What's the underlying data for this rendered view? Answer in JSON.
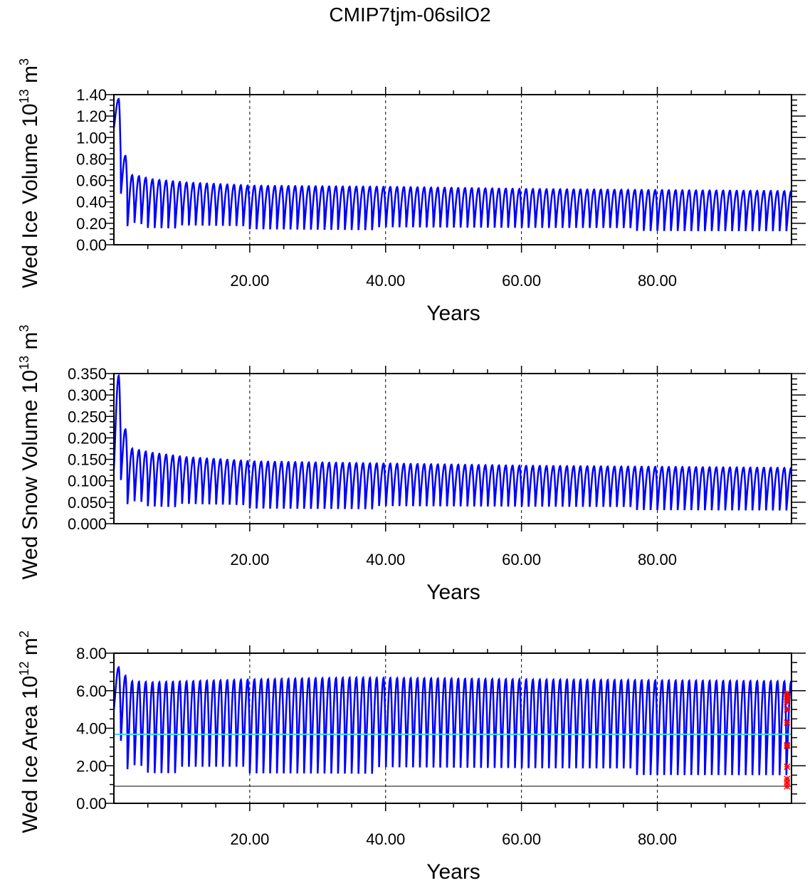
{
  "title": "CMIP7tjm-06silO2",
  "chart_data": [
    {
      "type": "line",
      "ylabel": {
        "main": "Wed Ice Volume 10",
        "exp": "13",
        "unit": " m",
        "unit_exp": "3"
      },
      "xlabel": "Years",
      "xlim": [
        0,
        99.75
      ],
      "ylim": [
        0,
        1.4
      ],
      "xticks": [
        "20.00",
        "40.00",
        "60.00",
        "80.00"
      ],
      "yticks": [
        "0.00",
        "0.20",
        "0.40",
        "0.60",
        "0.80",
        "1.00",
        "1.20",
        "1.40"
      ],
      "ytick_step": 0.2,
      "yminor_step": 0.05,
      "start_value": 1.02,
      "series_color": "#0000ff",
      "envelope": [
        [
          0,
          1.36,
          0.35
        ],
        [
          1,
          0.83,
          0.05
        ],
        [
          2,
          0.65,
          0.05
        ],
        [
          3,
          0.64,
          0.04
        ],
        [
          5,
          0.61,
          0.04
        ],
        [
          10,
          0.58,
          0.04
        ],
        [
          20,
          0.55,
          0.04
        ],
        [
          40,
          0.54,
          0.03
        ],
        [
          60,
          0.52,
          0.03
        ],
        [
          99,
          0.5,
          0.03
        ]
      ]
    },
    {
      "type": "line",
      "ylabel": {
        "main": "Wed Snow Volume 10",
        "exp": "13",
        "unit": " m",
        "unit_exp": "3"
      },
      "xlabel": "Years",
      "xlim": [
        0,
        99.75
      ],
      "ylim": [
        0,
        0.35
      ],
      "xticks": [
        "20.00",
        "40.00",
        "60.00",
        "80.00"
      ],
      "yticks": [
        "0.000",
        "0.050",
        "0.100",
        "0.150",
        "0.200",
        "0.250",
        "0.300",
        "0.350"
      ],
      "ytick_step": 0.05,
      "yminor_step": 0.0125,
      "start_value": 0.07,
      "series_color": "#0000ff",
      "envelope": [
        [
          0,
          0.345,
          0.06
        ],
        [
          1,
          0.22,
          0.012
        ],
        [
          2,
          0.175,
          0.01
        ],
        [
          5,
          0.165,
          0.008
        ],
        [
          10,
          0.155,
          0.008
        ],
        [
          20,
          0.145,
          0.007
        ],
        [
          40,
          0.14,
          0.006
        ],
        [
          60,
          0.135,
          0.006
        ],
        [
          99,
          0.13,
          0.005
        ]
      ]
    },
    {
      "type": "line",
      "ylabel": {
        "main": "Wed Ice Area 10",
        "exp": "12",
        "unit": " m",
        "unit_exp": "2"
      },
      "xlabel": "Years",
      "xlim": [
        0,
        99.75
      ],
      "ylim": [
        0,
        8
      ],
      "xticks": [
        "20.00",
        "40.00",
        "60.00",
        "80.00"
      ],
      "yticks": [
        "0.00",
        "2.00",
        "4.00",
        "6.00",
        "8.00"
      ],
      "ytick_step": 2,
      "yminor_step": 0.5,
      "start_value": 4.4,
      "series_color": "#0000ff",
      "envelope": [
        [
          0,
          7.25,
          2.1
        ],
        [
          1,
          6.8,
          0.6
        ],
        [
          2,
          6.5,
          0.45
        ],
        [
          5,
          6.45,
          0.35
        ],
        [
          20,
          6.6,
          0.3
        ],
        [
          35,
          6.7,
          0.25
        ],
        [
          60,
          6.6,
          0.2
        ],
        [
          99,
          6.5,
          0.2
        ]
      ],
      "hlines": [
        {
          "y": 5.9,
          "color": "#000000"
        },
        {
          "y": 0.91,
          "color": "#000000"
        },
        {
          "y": 3.68,
          "color": "#33dddd"
        }
      ],
      "markers": {
        "x": 99.1,
        "color": "#ff0000",
        "y": [
          5.85,
          5.7,
          5.55,
          5.4,
          5.0,
          4.3,
          3.1,
          3.05,
          1.95,
          1.3,
          1.1,
          0.9
        ]
      }
    }
  ]
}
